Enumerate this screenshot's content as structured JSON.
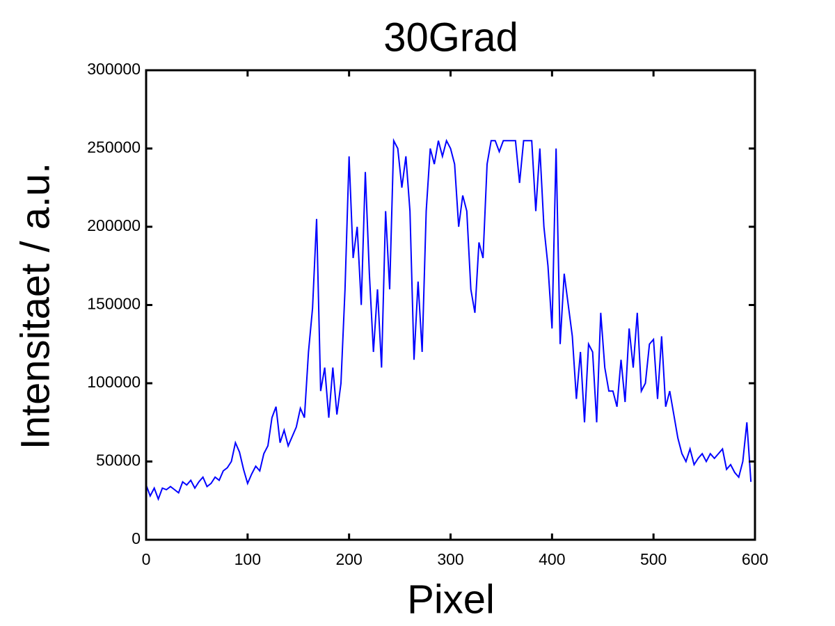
{
  "chart_data": {
    "type": "line",
    "title": "30Grad",
    "x_label": "Pixel",
    "y_label": "Intensitaet / a.u.",
    "xlim": [
      0,
      600
    ],
    "ylim": [
      0,
      300000
    ],
    "xticks": [
      0,
      100,
      200,
      300,
      400,
      500,
      600
    ],
    "yticks": [
      0,
      50000,
      100000,
      150000,
      200000,
      250000,
      300000
    ],
    "grid": false,
    "series": [
      {
        "color": "#0000ff",
        "x": [
          0,
          4,
          8,
          12,
          16,
          20,
          24,
          28,
          32,
          36,
          40,
          44,
          48,
          52,
          56,
          60,
          64,
          68,
          72,
          76,
          80,
          84,
          88,
          92,
          96,
          100,
          104,
          108,
          112,
          116,
          120,
          124,
          128,
          132,
          136,
          140,
          144,
          148,
          152,
          156,
          160,
          164,
          168,
          172,
          176,
          180,
          184,
          188,
          192,
          196,
          200,
          204,
          208,
          212,
          216,
          220,
          224,
          228,
          232,
          236,
          240,
          244,
          248,
          252,
          256,
          260,
          264,
          268,
          272,
          276,
          280,
          284,
          288,
          292,
          296,
          300,
          304,
          308,
          312,
          316,
          320,
          324,
          328,
          332,
          336,
          340,
          344,
          348,
          352,
          356,
          360,
          364,
          368,
          372,
          376,
          380,
          384,
          388,
          392,
          396,
          400,
          404,
          408,
          412,
          416,
          420,
          424,
          428,
          432,
          436,
          440,
          444,
          448,
          452,
          456,
          460,
          464,
          468,
          472,
          476,
          480,
          484,
          488,
          492,
          496,
          500,
          504,
          508,
          512,
          516,
          520,
          524,
          528,
          532,
          536,
          540,
          544,
          548,
          552,
          556,
          560,
          564,
          568,
          572,
          576,
          580,
          584,
          588,
          592,
          596
        ],
        "values": [
          35000,
          28000,
          33000,
          26000,
          33000,
          32000,
          34000,
          32000,
          30000,
          37000,
          35000,
          38000,
          33000,
          37000,
          40000,
          34000,
          36000,
          40000,
          38000,
          44000,
          46000,
          50000,
          62000,
          56000,
          45000,
          36000,
          42000,
          47000,
          44000,
          55000,
          60000,
          78000,
          85000,
          62000,
          70000,
          60000,
          66000,
          72000,
          84000,
          78000,
          120000,
          148000,
          205000,
          95000,
          110000,
          78000,
          110000,
          80000,
          100000,
          160000,
          245000,
          180000,
          200000,
          150000,
          235000,
          170000,
          120000,
          160000,
          110000,
          210000,
          160000,
          255000,
          250000,
          225000,
          245000,
          210000,
          115000,
          165000,
          120000,
          210000,
          250000,
          240000,
          255000,
          245000,
          255000,
          250000,
          240000,
          200000,
          220000,
          210000,
          160000,
          145000,
          190000,
          180000,
          240000,
          255000,
          255000,
          248000,
          255000,
          255000,
          255000,
          255000,
          228000,
          255000,
          255000,
          255000,
          210000,
          250000,
          200000,
          175000,
          135000,
          250000,
          125000,
          170000,
          150000,
          130000,
          90000,
          120000,
          75000,
          125000,
          120000,
          75000,
          145000,
          110000,
          95000,
          95000,
          85000,
          115000,
          88000,
          135000,
          110000,
          145000,
          95000,
          100000,
          125000,
          128000,
          90000,
          130000,
          85000,
          95000,
          80000,
          65000,
          55000,
          50000,
          58000,
          48000,
          52000,
          55000,
          50000,
          55000,
          52000,
          55000,
          58000,
          45000,
          48000,
          43000,
          40000,
          50000,
          75000,
          37000
        ]
      }
    ]
  }
}
